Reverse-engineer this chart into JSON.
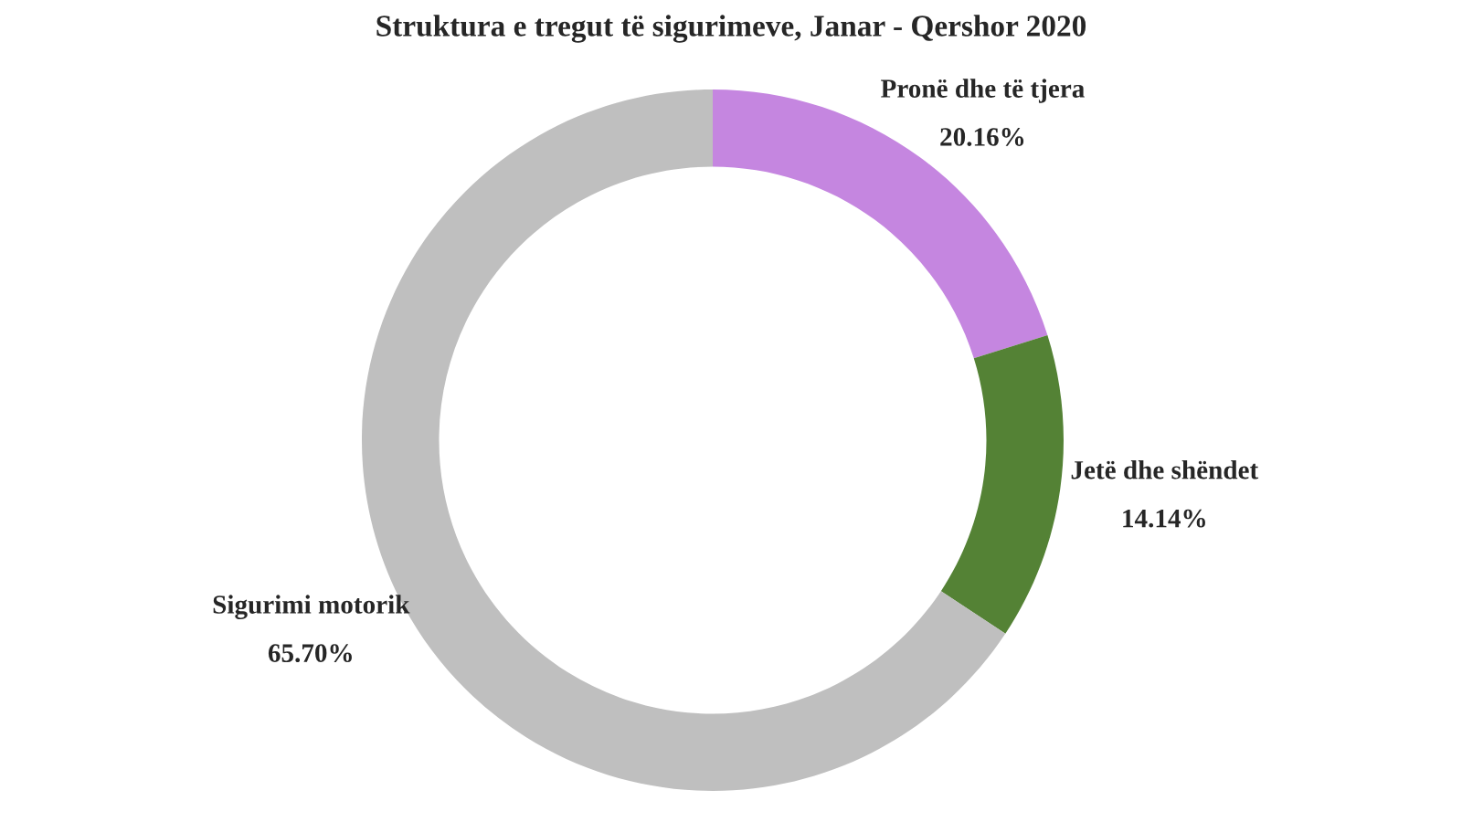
{
  "chart_data": {
    "type": "donut",
    "title": "Struktura e tregut të sigurimeve, Janar - Qershor 2020",
    "categories": [
      "Pronë dhe të tjera",
      "Jetë dhe shëndet",
      "Sigurimi motorik"
    ],
    "values": [
      20.16,
      14.14,
      65.7
    ],
    "value_labels": [
      "20.16%",
      "14.14%",
      "65.70%"
    ],
    "colors": [
      "#c586e0",
      "#548235",
      "#bfbfbf"
    ],
    "legend": false
  }
}
